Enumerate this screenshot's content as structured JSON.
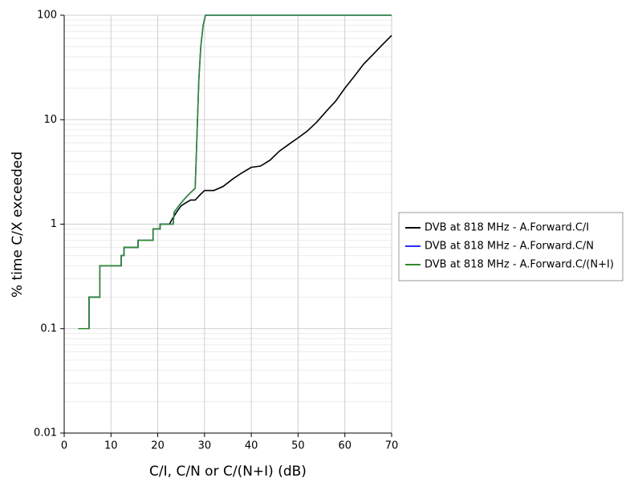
{
  "chart_data": {
    "type": "line",
    "x_label": "C/I, C/N or C/(N+I) (dB)",
    "y_label": "% time C/X exceeded",
    "xlim": [
      0,
      70
    ],
    "xticks": [
      0,
      10,
      20,
      30,
      40,
      50,
      60,
      70
    ],
    "ylim": [
      0.01,
      100
    ],
    "yticks": [
      0.01,
      0.1,
      1,
      10,
      100
    ],
    "log_y": true,
    "grid": true,
    "legend": "right",
    "series": [
      {
        "name": "DVB at 818 MHz - A.Forward.C/I",
        "color": "#000000",
        "x": [
          3,
          5.3,
          5.3,
          7.6,
          7.6,
          12.2,
          12.2,
          12.8,
          12.8,
          15.8,
          15.8,
          19,
          19,
          20.5,
          20.5,
          22.5,
          23,
          24,
          25,
          26,
          27,
          28,
          29,
          30,
          32,
          34,
          36,
          38,
          40,
          42,
          44,
          46,
          48,
          50,
          52,
          54,
          56,
          58,
          60,
          62,
          64,
          66,
          68,
          70
        ],
        "values": [
          0.1,
          0.1,
          0.2,
          0.2,
          0.4,
          0.4,
          0.5,
          0.5,
          0.6,
          0.6,
          0.7,
          0.7,
          0.9,
          0.9,
          1.0,
          1.0,
          1.1,
          1.3,
          1.5,
          1.6,
          1.7,
          1.7,
          1.9,
          2.1,
          2.1,
          2.3,
          2.7,
          3.1,
          3.5,
          3.6,
          4.1,
          5.0,
          5.8,
          6.7,
          7.8,
          9.5,
          12,
          15,
          20,
          26,
          34,
          42,
          52,
          64
        ]
      },
      {
        "name": "DVB at 818 MHz - A.Forward.C/N",
        "color": "#2a2aff",
        "x": [
          3,
          5.3,
          5.3,
          7.6,
          7.6,
          12.2,
          12.2,
          12.8,
          12.8,
          15.8,
          15.8,
          19,
          19,
          20.5,
          20.5,
          23.3,
          23.5,
          24.5,
          25.5,
          26.5,
          27.5,
          28,
          28.2,
          28.5,
          28.8,
          29.2,
          29.7,
          30.2,
          70
        ],
        "values": [
          0.1,
          0.1,
          0.2,
          0.2,
          0.4,
          0.4,
          0.5,
          0.5,
          0.6,
          0.6,
          0.7,
          0.7,
          0.9,
          0.9,
          1.0,
          1.0,
          1.3,
          1.5,
          1.7,
          1.9,
          2.1,
          2.2,
          4,
          10,
          25,
          50,
          80,
          100,
          100
        ]
      },
      {
        "name": "DVB at 818 MHz - A.Forward.C/(N+I)",
        "color": "#2e8b2e",
        "x": [
          3,
          5.3,
          5.3,
          7.6,
          7.6,
          12.2,
          12.2,
          12.8,
          12.8,
          15.8,
          15.8,
          19,
          19,
          20.5,
          20.5,
          23.3,
          23.5,
          24.5,
          25.5,
          26.5,
          27.5,
          28,
          28.2,
          28.5,
          28.8,
          29.2,
          29.7,
          30.2,
          70
        ],
        "values": [
          0.1,
          0.1,
          0.2,
          0.2,
          0.4,
          0.4,
          0.5,
          0.5,
          0.6,
          0.6,
          0.7,
          0.7,
          0.9,
          0.9,
          1.0,
          1.0,
          1.3,
          1.5,
          1.7,
          1.9,
          2.1,
          2.2,
          4,
          10,
          25,
          50,
          80,
          100,
          100
        ]
      }
    ]
  }
}
